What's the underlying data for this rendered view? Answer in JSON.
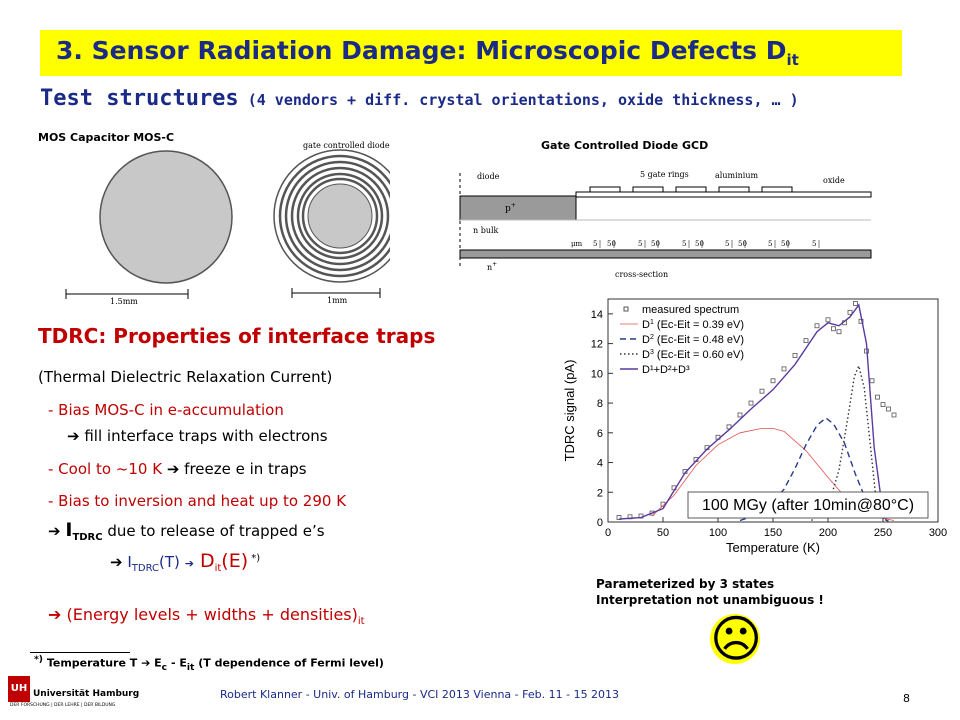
{
  "title": {
    "main": "3. Sensor Radiation Damage: Microscopic Defects D",
    "sub": "it"
  },
  "subtitle": {
    "lead": "Test structures",
    "rest": " (4 vendors + diff. crystal orientations, oxide thickness, … )"
  },
  "mos_label": "MOS Capacitor MOS-C",
  "gcd_label": "Gate Controlled Diode GCD",
  "gcd_small_title": "gate controlled diode",
  "scale_mos": "1.5mm",
  "scale_gcd": "1mm",
  "cross_section": {
    "diode": "diode",
    "gate_rings": "5 gate rings",
    "aluminium": "aluminium",
    "oxide": "oxide",
    "p_plus": "p",
    "n_bulk": "n bulk",
    "n_plus": "n",
    "plus": "+",
    "um": "μm",
    "dims": [
      "5",
      "50",
      "5",
      "50",
      "5",
      "50",
      "5",
      "50",
      "5",
      "50",
      "5"
    ],
    "caption": "cross-section"
  },
  "tdrc": {
    "head": "TDRC: Properties of interface traps",
    "line1": "(Thermal Dielectric Relaxation Current)",
    "line2": "- Bias MOS-C in e-accumulation",
    "line3": " fill interface traps with electrons",
    "line4a": "- Cool to ~10 K ",
    "line4b": " freeze e in traps",
    "line5": "- Bias to inversion and heat up to 290 K",
    "line6a": "I",
    "line6b": "TDRC",
    "line6c": " due to release of trapped e’s",
    "line7a": "I",
    "line7b": "TDRC",
    "line7c": "(T) ",
    "line7d": " D",
    "line7e": "it",
    "line7f": "(E)",
    "line7g": " *)",
    "line8": " (Energy levels + widths + densities)",
    "line8sub": "it"
  },
  "footnote": {
    "a": "*)",
    "b": " Temperature T ",
    "c": " E",
    "d": "c",
    "e": " - E",
    "f": "it",
    "g": " (T dependence of Fermi level)"
  },
  "param_note": {
    "line1": "Parameterized by 3 states",
    "line2": "Interpretation not unambiguous !"
  },
  "frown": "☹",
  "arrow": "➔",
  "footer": "Robert Klanner - Univ. of Hamburg - VCI 2013 Vienna - Feb. 11 - 15 2013",
  "page_number": "8",
  "logo": {
    "name": "Universität Hamburg",
    "tag": "DER FORSCHUNG | DER LEHRE | DER BILDUNG",
    "mark": "UH"
  },
  "chart_data": {
    "type": "line",
    "xlabel": "Temperature (K)",
    "ylabel": "TDRC signal (pA)",
    "xlim": [
      0,
      300
    ],
    "ylim": [
      0,
      15
    ],
    "xticks": [
      "0",
      "50",
      "100",
      "150",
      "200",
      "250",
      "300"
    ],
    "yticks": [
      "0",
      "2",
      "4",
      "6",
      "8",
      "10",
      "12",
      "14"
    ],
    "annotation": "100 MGy (after 10min@80°C)",
    "legend_position": "top-left",
    "legend": {
      "measured": "measured spectrum",
      "d1": "D",
      "d1_sup": "1",
      "d1_sub": "it",
      "d1_rest": " (E",
      "d1_c": "c",
      "d1_rest2": "-E",
      "d1_it": "it",
      "d1_val": " = 0.39 eV)",
      "d2_val": " = 0.48 eV)",
      "d3_val": " = 0.60 eV)",
      "sum": "D¹+D²+D³"
    },
    "series": [
      {
        "name": "measured spectrum",
        "style": "markers",
        "color": "#555555",
        "x": [
          10,
          20,
          30,
          40,
          50,
          60,
          70,
          80,
          90,
          100,
          110,
          120,
          130,
          140,
          150,
          160,
          170,
          180,
          190,
          200,
          205,
          210,
          215,
          220,
          225,
          230,
          235,
          240,
          245,
          250,
          255,
          260
        ],
        "y": [
          0.3,
          0.35,
          0.4,
          0.6,
          1.2,
          2.3,
          3.4,
          4.2,
          5.0,
          5.7,
          6.4,
          7.2,
          8.0,
          8.8,
          9.5,
          10.3,
          11.2,
          12.2,
          13.2,
          13.6,
          13.0,
          12.8,
          13.4,
          14.1,
          14.7,
          13.5,
          11.5,
          9.5,
          8.4,
          7.9,
          7.6,
          7.2
        ]
      },
      {
        "name": "D1 0.39 eV",
        "style": "thin",
        "color": "#e05050",
        "x": [
          40,
          60,
          80,
          100,
          120,
          140,
          150,
          160,
          180,
          200,
          220,
          240,
          260
        ],
        "y": [
          0.4,
          1.8,
          3.8,
          5.2,
          6.0,
          6.3,
          6.3,
          6.1,
          4.8,
          3.0,
          1.3,
          0.4,
          0.1
        ]
      },
      {
        "name": "D2 0.48 eV",
        "style": "dashed",
        "color": "#2a3a8a",
        "x": [
          120,
          140,
          160,
          170,
          180,
          190,
          198,
          205,
          215,
          225,
          235,
          245,
          255
        ],
        "y": [
          0.1,
          0.6,
          2.2,
          3.6,
          5.2,
          6.5,
          7.0,
          6.6,
          5.3,
          3.2,
          1.4,
          0.4,
          0.05
        ]
      },
      {
        "name": "D3 0.60 eV",
        "style": "dotted",
        "color": "#333333",
        "x": [
          185,
          200,
          210,
          218,
          224,
          228,
          233,
          238,
          243,
          250
        ],
        "y": [
          0.1,
          1.0,
          3.5,
          7.0,
          9.8,
          10.5,
          9.0,
          5.5,
          2.0,
          0.3
        ]
      },
      {
        "name": "sum",
        "style": "solid",
        "color": "#5a3aa0",
        "x": [
          10,
          30,
          50,
          70,
          90,
          110,
          130,
          150,
          170,
          190,
          200,
          210,
          220,
          228,
          235,
          242,
          250
        ],
        "y": [
          0.2,
          0.3,
          0.9,
          3.3,
          4.9,
          6.2,
          7.6,
          8.9,
          10.6,
          12.8,
          13.4,
          13.2,
          13.8,
          14.6,
          12.0,
          5.0,
          0.6
        ]
      }
    ]
  }
}
